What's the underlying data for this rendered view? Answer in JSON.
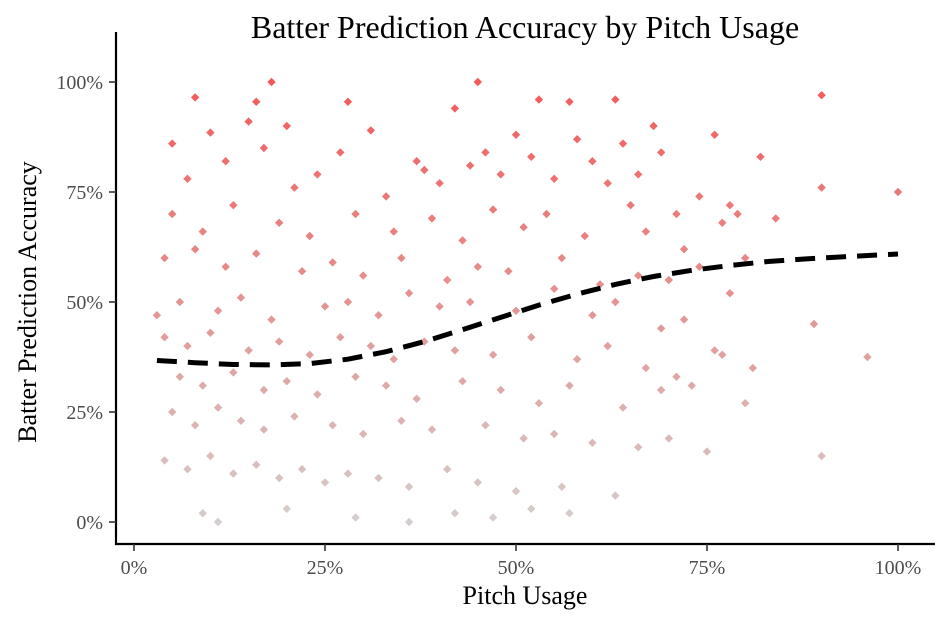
{
  "chart_data": {
    "type": "scatter",
    "title": "Batter Prediction Accuracy by Pitch Usage",
    "xlabel": "Pitch Usage",
    "ylabel": "Batter Prediction Accuracy",
    "xlim": [
      0,
      1
    ],
    "ylim": [
      0,
      1
    ],
    "x_ticks": [
      {
        "value": 0,
        "label": "0%"
      },
      {
        "value": 0.25,
        "label": "25%"
      },
      {
        "value": 0.5,
        "label": "50%"
      },
      {
        "value": 0.75,
        "label": "75%"
      },
      {
        "value": 1,
        "label": "100%"
      }
    ],
    "y_ticks": [
      {
        "value": 0,
        "label": "0%"
      },
      {
        "value": 0.25,
        "label": "25%"
      },
      {
        "value": 0.5,
        "label": "50%"
      },
      {
        "value": 0.75,
        "label": "75%"
      },
      {
        "value": 1,
        "label": "100%"
      }
    ],
    "grid": false,
    "legend": "none",
    "point_shape": "diamond",
    "color_low": "#c9c2c0",
    "color_high": "#f03030",
    "trend_line": {
      "style": "dashed",
      "color": "#000000",
      "x": [
        0.03,
        0.08,
        0.13,
        0.18,
        0.23,
        0.28,
        0.33,
        0.38,
        0.43,
        0.48,
        0.53,
        0.58,
        0.63,
        0.68,
        0.73,
        0.78,
        0.83,
        0.88,
        0.93,
        1.0
      ],
      "y": [
        0.367,
        0.362,
        0.358,
        0.357,
        0.36,
        0.37,
        0.387,
        0.41,
        0.437,
        0.465,
        0.493,
        0.518,
        0.54,
        0.558,
        0.572,
        0.583,
        0.592,
        0.598,
        0.603,
        0.609
      ]
    },
    "series": [
      {
        "x": [
          0.08,
          0.18,
          0.45,
          0.9,
          0.16,
          0.28,
          0.53,
          0.57,
          0.63,
          0.42,
          0.05,
          0.1,
          0.15,
          0.2,
          0.27,
          0.31,
          0.37,
          0.46,
          0.5,
          0.58,
          0.64,
          0.68,
          0.69,
          0.76,
          0.78,
          0.82,
          0.9,
          1.0,
          0.07,
          0.12,
          0.17,
          0.21,
          0.24,
          0.33,
          0.38,
          0.4,
          0.44,
          0.48,
          0.52,
          0.55,
          0.6,
          0.62,
          0.66,
          0.71,
          0.74,
          0.79,
          0.84,
          0.05,
          0.09,
          0.13,
          0.19,
          0.23,
          0.29,
          0.34,
          0.39,
          0.43,
          0.47,
          0.51,
          0.54,
          0.59,
          0.65,
          0.67,
          0.72,
          0.77,
          0.8,
          0.04,
          0.08,
          0.12,
          0.16,
          0.22,
          0.26,
          0.3,
          0.35,
          0.41,
          0.45,
          0.49,
          0.56,
          0.61,
          0.66,
          0.7,
          0.74,
          0.78,
          0.89,
          0.96,
          0.03,
          0.06,
          0.11,
          0.14,
          0.18,
          0.25,
          0.28,
          0.32,
          0.36,
          0.4,
          0.44,
          0.5,
          0.55,
          0.6,
          0.63,
          0.69,
          0.72,
          0.77,
          0.81,
          0.04,
          0.07,
          0.1,
          0.15,
          0.19,
          0.23,
          0.27,
          0.31,
          0.34,
          0.38,
          0.42,
          0.47,
          0.52,
          0.58,
          0.62,
          0.67,
          0.71,
          0.76,
          0.06,
          0.09,
          0.13,
          0.17,
          0.2,
          0.24,
          0.29,
          0.33,
          0.37,
          0.43,
          0.48,
          0.53,
          0.57,
          0.64,
          0.69,
          0.73,
          0.8,
          0.05,
          0.08,
          0.11,
          0.14,
          0.17,
          0.21,
          0.26,
          0.3,
          0.35,
          0.39,
          0.46,
          0.51,
          0.55,
          0.6,
          0.66,
          0.7,
          0.75,
          0.9,
          0.04,
          0.07,
          0.1,
          0.13,
          0.16,
          0.19,
          0.22,
          0.25,
          0.28,
          0.32,
          0.36,
          0.41,
          0.45,
          0.5,
          0.56,
          0.63,
          0.09,
          0.11,
          0.2,
          0.29,
          0.36,
          0.42,
          0.47,
          0.52,
          0.57
        ],
        "y": [
          0.965,
          1.0,
          1.0,
          0.97,
          0.955,
          0.955,
          0.96,
          0.955,
          0.96,
          0.94,
          0.86,
          0.885,
          0.91,
          0.9,
          0.84,
          0.89,
          0.82,
          0.84,
          0.88,
          0.87,
          0.86,
          0.9,
          0.84,
          0.88,
          0.72,
          0.83,
          0.76,
          0.75,
          0.78,
          0.82,
          0.85,
          0.76,
          0.79,
          0.74,
          0.8,
          0.77,
          0.81,
          0.79,
          0.83,
          0.78,
          0.82,
          0.77,
          0.79,
          0.7,
          0.74,
          0.7,
          0.69,
          0.7,
          0.66,
          0.72,
          0.68,
          0.65,
          0.7,
          0.66,
          0.69,
          0.64,
          0.71,
          0.67,
          0.7,
          0.65,
          0.72,
          0.66,
          0.62,
          0.68,
          0.6,
          0.6,
          0.62,
          0.58,
          0.61,
          0.57,
          0.59,
          0.56,
          0.6,
          0.55,
          0.58,
          0.57,
          0.6,
          0.54,
          0.56,
          0.55,
          0.58,
          0.52,
          0.45,
          0.375,
          0.47,
          0.5,
          0.48,
          0.51,
          0.46,
          0.49,
          0.5,
          0.47,
          0.52,
          0.49,
          0.5,
          0.48,
          0.53,
          0.47,
          0.5,
          0.44,
          0.46,
          0.38,
          0.35,
          0.42,
          0.4,
          0.43,
          0.39,
          0.41,
          0.38,
          0.42,
          0.4,
          0.37,
          0.41,
          0.39,
          0.38,
          0.42,
          0.37,
          0.4,
          0.35,
          0.33,
          0.39,
          0.33,
          0.31,
          0.34,
          0.3,
          0.32,
          0.29,
          0.33,
          0.31,
          0.28,
          0.32,
          0.3,
          0.27,
          0.31,
          0.26,
          0.3,
          0.31,
          0.27,
          0.25,
          0.22,
          0.26,
          0.23,
          0.21,
          0.24,
          0.22,
          0.2,
          0.23,
          0.21,
          0.22,
          0.19,
          0.2,
          0.18,
          0.17,
          0.19,
          0.16,
          0.15,
          0.14,
          0.12,
          0.15,
          0.11,
          0.13,
          0.1,
          0.12,
          0.09,
          0.11,
          0.1,
          0.08,
          0.12,
          0.09,
          0.07,
          0.08,
          0.06,
          0.02,
          0.0,
          0.03,
          0.01,
          0.0,
          0.02,
          0.01,
          0.03,
          0.02
        ]
      }
    ]
  }
}
